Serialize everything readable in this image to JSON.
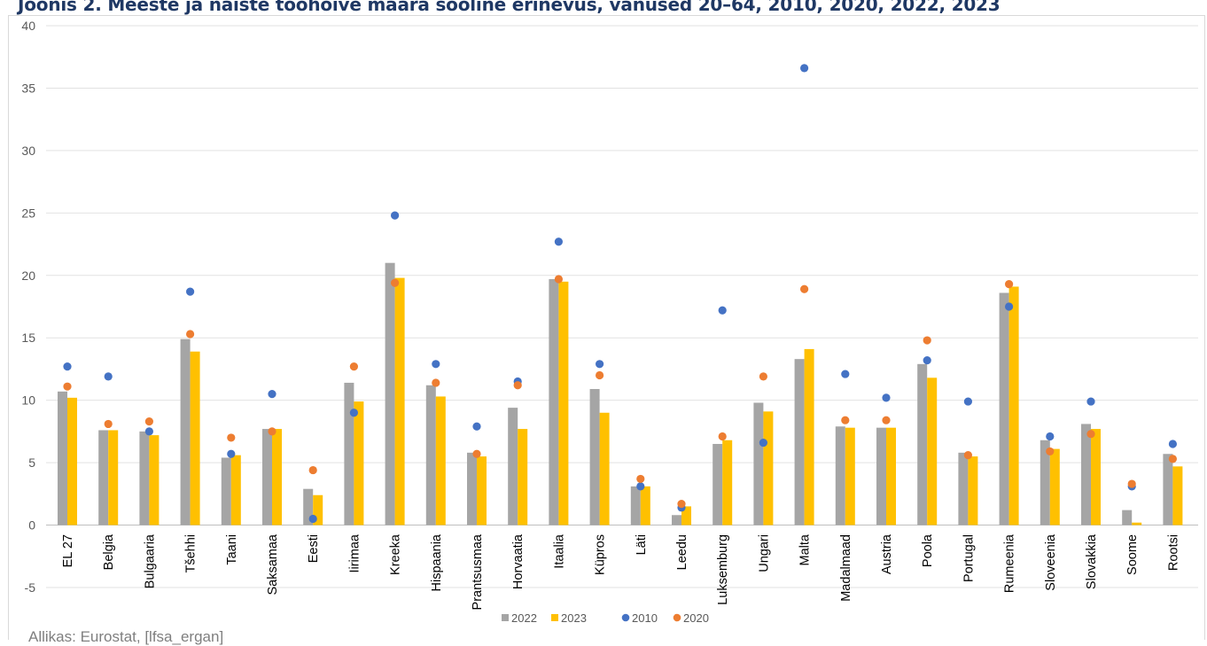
{
  "title": "Joonis 2. Meeste ja naiste tööhõive määra sooline erinevus, vanused 20–64, 2010, 2020, 2022, 2023",
  "source": "Allikas: Eurostat, [lfsa_ergan]",
  "chart_data": {
    "type": "bar",
    "title": "Joonis 2. Meeste ja naiste tööhõive määra sooline erinevus, vanused 20–64, 2010, 2020, 2022, 2023",
    "xlabel": "",
    "ylabel": "",
    "ylim": [
      -5,
      40
    ],
    "yticks": [
      40,
      35,
      30,
      25,
      20,
      15,
      10,
      5,
      0,
      -5
    ],
    "grid": true,
    "legend_position": "bottom",
    "categories": [
      "EL 27",
      "Belgia",
      "Bulgaaria",
      "Tšehhi",
      "Taani",
      "Saksamaa",
      "Eesti",
      "Iirimaa",
      "Kreeka",
      "Hispaania",
      "Prantsusmaa",
      "Horvaatia",
      "Itaalia",
      "Küpros",
      "Läti",
      "Leedu",
      "Luksemburg",
      "Ungari",
      "Malta",
      "Madalmaad",
      "Austria",
      "Poola",
      "Portugal",
      "Rumeenia",
      "Sloveenia",
      "Slovakkia",
      "Soome",
      "Rootsi"
    ],
    "series": [
      {
        "name": "2022",
        "kind": "bar",
        "color": "#a5a5a5",
        "values": [
          10.7,
          7.6,
          7.5,
          14.9,
          5.4,
          7.7,
          2.9,
          11.4,
          21.0,
          11.2,
          5.8,
          9.4,
          19.7,
          10.9,
          3.1,
          0.8,
          6.5,
          9.8,
          13.3,
          7.9,
          7.8,
          12.9,
          5.8,
          18.6,
          6.8,
          8.1,
          1.2,
          5.7
        ]
      },
      {
        "name": "2023",
        "kind": "bar",
        "color": "#ffc000",
        "values": [
          10.2,
          7.6,
          7.2,
          13.9,
          5.6,
          7.7,
          2.4,
          9.9,
          19.8,
          10.3,
          5.5,
          7.7,
          19.5,
          9.0,
          3.1,
          1.5,
          6.8,
          9.1,
          14.1,
          7.8,
          7.8,
          11.8,
          5.5,
          19.1,
          6.1,
          7.7,
          0.2,
          4.7
        ]
      },
      {
        "name": "2010",
        "kind": "point",
        "color": "#4472c4",
        "values": [
          12.7,
          11.9,
          7.5,
          18.7,
          5.7,
          10.5,
          0.5,
          9.0,
          24.8,
          12.9,
          7.9,
          11.5,
          22.7,
          12.9,
          3.1,
          1.4,
          17.2,
          6.6,
          36.6,
          12.1,
          10.2,
          13.2,
          9.9,
          17.5,
          7.1,
          9.9,
          3.1,
          6.5
        ]
      },
      {
        "name": "2020",
        "kind": "point",
        "color": "#ed7d31",
        "values": [
          11.1,
          8.1,
          8.3,
          15.3,
          7.0,
          7.5,
          4.4,
          12.7,
          19.4,
          11.4,
          5.7,
          11.2,
          19.7,
          12.0,
          3.7,
          1.7,
          7.1,
          11.9,
          18.9,
          8.4,
          8.4,
          14.8,
          5.6,
          19.3,
          5.9,
          7.3,
          3.3,
          5.3
        ]
      }
    ]
  }
}
